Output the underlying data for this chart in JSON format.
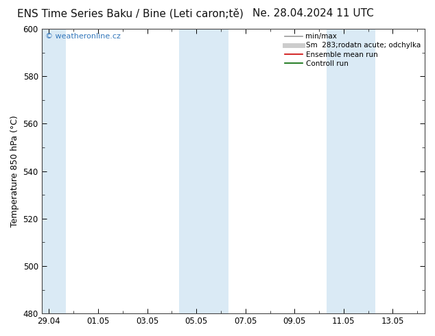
{
  "title_left": "ENS Time Series Baku / Bine (Leti caron;tě)",
  "title_right": "Ne. 28.04.2024 11 UTC",
  "ylabel": "Temperature 850 hPa (°C)",
  "ylim": [
    480,
    600
  ],
  "yticks": [
    480,
    500,
    520,
    540,
    560,
    580,
    600
  ],
  "xtick_labels": [
    "29.04",
    "01.05",
    "03.05",
    "05.05",
    "07.05",
    "09.05",
    "11.05",
    "13.05"
  ],
  "xtick_positions": [
    0,
    2,
    4,
    6,
    8,
    10,
    12,
    14
  ],
  "xlim": [
    -0.3,
    15.3
  ],
  "shaded_bands": [
    {
      "start": -0.3,
      "end": 0.7
    },
    {
      "start": 5.3,
      "end": 7.3
    },
    {
      "start": 11.3,
      "end": 13.3
    }
  ],
  "shade_color": "#daeaf5",
  "bg_color": "#ffffff",
  "plot_bg_color": "#ffffff",
  "watermark": "© weatheronline.cz",
  "watermark_color": "#3377bb",
  "legend_entries": [
    {
      "label": "min/max",
      "color": "#999999",
      "lw": 1.2,
      "style": "-"
    },
    {
      "label": "Sm  283;rodatn acute; odchylka",
      "color": "#cccccc",
      "lw": 5,
      "style": "-"
    },
    {
      "label": "Ensemble mean run",
      "color": "#cc0000",
      "lw": 1.2,
      "style": "-"
    },
    {
      "label": "Controll run",
      "color": "#006600",
      "lw": 1.2,
      "style": "-"
    }
  ],
  "title_fontsize": 11,
  "tick_fontsize": 8.5,
  "ylabel_fontsize": 9,
  "legend_fontsize": 7.5,
  "border_color": "#444444",
  "watermark_fontsize": 8
}
